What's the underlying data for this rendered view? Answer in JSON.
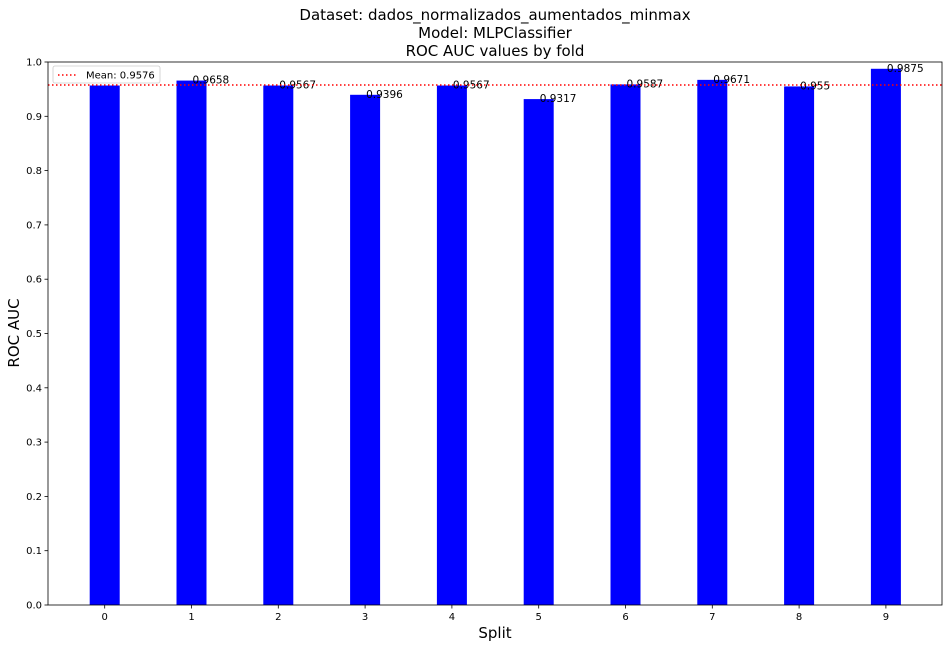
{
  "chart_data": {
    "type": "bar",
    "title_lines": [
      "Dataset: dados_normalizados_aumentados_minmax",
      "Model: MLPClassifier",
      "ROC AUC values by fold"
    ],
    "xlabel": "Split",
    "ylabel": "ROC AUC",
    "categories": [
      "0",
      "1",
      "2",
      "3",
      "4",
      "5",
      "6",
      "7",
      "8",
      "9"
    ],
    "values": [
      0.9567,
      0.9658,
      0.9567,
      0.9396,
      0.9567,
      0.9317,
      0.9587,
      0.9671,
      0.955,
      0.9875
    ],
    "data_labels": [
      "",
      "0.9658",
      "0.9567",
      "0.9396",
      "0.9567",
      "0.9317",
      "0.9587",
      "0.9671",
      "0.955",
      "0.9875"
    ],
    "ylim": [
      0,
      1.0
    ],
    "yticks": [
      "0.0",
      "0.1",
      "0.2",
      "0.3",
      "0.4",
      "0.5",
      "0.6",
      "0.7",
      "0.8",
      "0.9",
      "1.0"
    ],
    "bar_color": "#0000ff",
    "mean_line": {
      "value": 0.9576,
      "label": "Mean: 0.9576",
      "color": "#ff0000",
      "style": "dotted"
    },
    "legend_position": "top-left",
    "grid": false
  }
}
